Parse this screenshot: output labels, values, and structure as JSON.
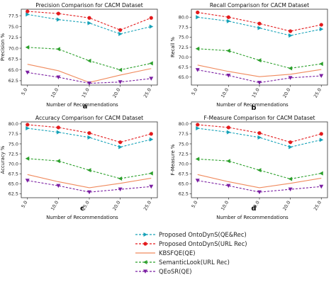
{
  "chart_data": [
    {
      "type": "line",
      "title": "Precision Comparison for CACM Dataset",
      "xlabel": "Number of Recommendations",
      "ylabel": "Precision %",
      "panel_label": "a",
      "x": [
        5,
        10,
        15,
        20,
        25
      ],
      "xticks": [
        "5.0",
        "10.0",
        "15.0",
        "20.0",
        "25.0"
      ],
      "ylim": [
        61.5,
        79.0
      ],
      "yticks": [
        62.5,
        65.0,
        67.5,
        70.0,
        72.5,
        75.0,
        77.5
      ],
      "ytick_labels": [
        "62.5",
        "65.0",
        "67.5",
        "70.0",
        "72.5",
        "75.0",
        "77.5"
      ],
      "series": [
        {
          "name": "Proposed OntoDynS(QE&Rec)",
          "values": [
            77.8,
            76.6,
            75.8,
            73.3,
            75.0
          ]
        },
        {
          "name": "Proposed OntoDynS(URL Rec)",
          "values": [
            78.5,
            78.0,
            77.0,
            74.2,
            77.0
          ]
        },
        {
          "name": "KBSFQE(QE)",
          "values": [
            66.3,
            64.8,
            62.1,
            63.8,
            65.3
          ]
        },
        {
          "name": "SemanticLook(URL Rec)",
          "values": [
            70.2,
            69.8,
            67.1,
            65.0,
            66.5
          ]
        },
        {
          "name": "QEoSR(QE)",
          "values": [
            64.4,
            63.3,
            61.9,
            62.2,
            63.0
          ]
        }
      ]
    },
    {
      "type": "line",
      "title": "Recall Comparison for CACM Dataset",
      "xlabel": "Number of Recommendations",
      "ylabel": "Recall %",
      "panel_label": "b",
      "x": [
        5,
        10,
        15,
        20,
        25
      ],
      "xticks": [
        "5.0",
        "10.0",
        "15.0",
        "20.0",
        "25.0"
      ],
      "ylim": [
        63.0,
        82.0
      ],
      "yticks": [
        65.0,
        67.5,
        70.0,
        72.5,
        75.0,
        77.5,
        80.0
      ],
      "ytick_labels": [
        "65.0",
        "67.5",
        "70.0",
        "72.5",
        "75.0",
        "77.5",
        "80.0"
      ],
      "series": [
        {
          "name": "Proposed OntoDynS(QE&Rec)",
          "values": [
            80.0,
            79.0,
            77.3,
            75.4,
            77.0
          ]
        },
        {
          "name": "Proposed OntoDynS(URL Rec)",
          "values": [
            81.2,
            80.0,
            78.4,
            76.5,
            78.1
          ]
        },
        {
          "name": "KBSFQE(QE)",
          "values": [
            68.0,
            66.4,
            65.1,
            65.7,
            66.9
          ]
        },
        {
          "name": "SemanticLook(URL Rec)",
          "values": [
            72.1,
            71.6,
            69.2,
            67.2,
            68.3
          ]
        },
        {
          "name": "QEoSR(QE)",
          "values": [
            66.8,
            65.4,
            63.6,
            64.8,
            65.3
          ]
        }
      ]
    },
    {
      "type": "line",
      "title": "Accuracy Comparison for CACM Dataset",
      "xlabel": "Number of Recommendations",
      "ylabel": "Accuracy %",
      "panel_label": "c",
      "x": [
        5,
        10,
        15,
        20,
        25
      ],
      "xticks": [
        "5.0",
        "10.0",
        "15.0",
        "20.0",
        "25.0"
      ],
      "ylim": [
        61.5,
        80.5
      ],
      "yticks": [
        62.5,
        65.0,
        67.5,
        70.0,
        72.5,
        75.0,
        77.5,
        80.0
      ],
      "ytick_labels": [
        "62.5",
        "65.0",
        "67.5",
        "70.0",
        "72.5",
        "75.0",
        "77.5",
        "80.0"
      ],
      "series": [
        {
          "name": "Proposed OntoDynS(QE&Rec)",
          "values": [
            78.9,
            77.9,
            76.6,
            74.2,
            76.1
          ]
        },
        {
          "name": "Proposed OntoDynS(URL Rec)",
          "values": [
            79.8,
            79.1,
            77.7,
            75.4,
            77.5
          ]
        },
        {
          "name": "KBSFQE(QE)",
          "values": [
            67.3,
            65.5,
            64.0,
            65.1,
            66.4
          ]
        },
        {
          "name": "SemanticLook(URL Rec)",
          "values": [
            71.3,
            70.7,
            68.4,
            66.3,
            67.6
          ]
        },
        {
          "name": "QEoSR(QE)",
          "values": [
            65.8,
            64.5,
            62.9,
            63.6,
            64.3
          ]
        }
      ]
    },
    {
      "type": "line",
      "title": "F-Measure Comparison for CACM Dataset",
      "xlabel": "Number of Recommendations",
      "ylabel": "F-Measure %",
      "panel_label": "d",
      "x": [
        5,
        10,
        15,
        20,
        25
      ],
      "xticks": [
        "5.0",
        "10.0",
        "15.0",
        "20.0",
        "25.0"
      ],
      "ylim": [
        61.5,
        80.5
      ],
      "yticks": [
        62.5,
        65.0,
        67.5,
        70.0,
        72.5,
        75.0,
        77.5,
        80.0
      ],
      "ytick_labels": [
        "62.5",
        "65.0",
        "67.5",
        "70.0",
        "72.5",
        "75.0",
        "77.5",
        "80.0"
      ],
      "series": [
        {
          "name": "Proposed OntoDynS(QE&Rec)",
          "values": [
            78.9,
            77.9,
            76.6,
            74.2,
            76.0
          ]
        },
        {
          "name": "Proposed OntoDynS(URL Rec)",
          "values": [
            79.8,
            79.1,
            77.7,
            75.4,
            77.5
          ]
        },
        {
          "name": "KBSFQE(QE)",
          "values": [
            67.3,
            65.5,
            64.0,
            65.1,
            66.4
          ]
        },
        {
          "name": "SemanticLook(URL Rec)",
          "values": [
            71.2,
            70.7,
            68.4,
            66.2,
            67.6
          ]
        },
        {
          "name": "QEoSR(QE)",
          "values": [
            65.8,
            64.5,
            62.9,
            63.6,
            64.3
          ]
        }
      ]
    }
  ],
  "legend": {
    "placement": "bottom-center",
    "items": [
      {
        "label": "Proposed OntoDynS(QE&Rec)",
        "color": "#17a2b8",
        "marker": "triangle-right",
        "linestyle": "dashed"
      },
      {
        "label": "Proposed OntoDynS(URL Rec)",
        "color": "#e31a1c",
        "marker": "circle",
        "linestyle": "dashed"
      },
      {
        "label": "KBSFQE(QE)",
        "color": "#f08a5d",
        "marker": "none",
        "linestyle": "solid"
      },
      {
        "label": "SemanticLook(URL Rec)",
        "color": "#2ca02c",
        "marker": "triangle-left",
        "linestyle": "dashed"
      },
      {
        "label": "QEoSR(QE)",
        "color": "#7b1fa2",
        "marker": "triangle-down",
        "linestyle": "dashed"
      }
    ]
  }
}
